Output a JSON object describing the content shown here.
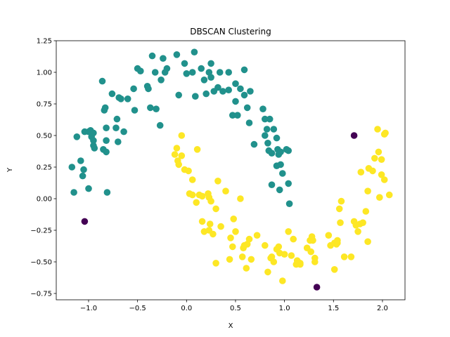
{
  "chart_data": {
    "type": "scatter",
    "title": "DBSCAN Clustering",
    "xlabel": "X",
    "ylabel": "Y",
    "xlim": [
      -1.33,
      2.23
    ],
    "ylim": [
      -0.8,
      1.25
    ],
    "xticks": [
      -1.0,
      -0.5,
      0.0,
      0.5,
      1.0,
      1.5,
      2.0
    ],
    "xtick_labels": [
      "−1.0",
      "−0.5",
      "0.0",
      "0.5",
      "1.0",
      "1.5",
      "2.0"
    ],
    "yticks": [
      -0.75,
      -0.5,
      -0.25,
      0.0,
      0.25,
      0.5,
      0.75,
      1.0,
      1.25
    ],
    "ytick_labels": [
      "−0.75",
      "−0.50",
      "−0.25",
      "0.00",
      "0.25",
      "0.50",
      "0.75",
      "1.00",
      "1.25"
    ],
    "grid": false,
    "series": [
      {
        "color": "#21918c",
        "points": [
          [
            -1.17,
            0.25
          ],
          [
            -1.15,
            0.05
          ],
          [
            -1.12,
            0.49
          ],
          [
            -1.08,
            0.3
          ],
          [
            -1.06,
            0.18
          ],
          [
            -1.05,
            0.23
          ],
          [
            -1.04,
            0.53
          ],
          [
            -1.0,
            0.08
          ],
          [
            -1.0,
            0.53
          ],
          [
            -0.98,
            0.54
          ],
          [
            -0.97,
            0.49
          ],
          [
            -0.95,
            0.42
          ],
          [
            -0.95,
            0.52
          ],
          [
            -0.95,
            0.46
          ],
          [
            -0.94,
            0.4
          ],
          [
            -0.86,
            0.93
          ],
          [
            -0.85,
            0.39
          ],
          [
            -0.84,
            0.7
          ],
          [
            -0.83,
            0.72
          ],
          [
            -0.82,
            0.37
          ],
          [
            -0.82,
            0.56
          ],
          [
            -0.82,
            0.46
          ],
          [
            -0.81,
            0.05
          ],
          [
            -0.76,
            0.83
          ],
          [
            -0.72,
            0.56
          ],
          [
            -0.71,
            0.63
          ],
          [
            -0.7,
            0.45
          ],
          [
            -0.69,
            0.8
          ],
          [
            -0.67,
            0.79
          ],
          [
            -0.64,
            0.53
          ],
          [
            -0.6,
            0.79
          ],
          [
            -0.54,
            0.87
          ],
          [
            -0.53,
            0.7
          ],
          [
            -0.5,
            1.03
          ],
          [
            -0.47,
            1.01
          ],
          [
            -0.4,
            0.89
          ],
          [
            -0.39,
            0.87
          ],
          [
            -0.37,
            0.72
          ],
          [
            -0.35,
            1.13
          ],
          [
            -0.32,
            1.0
          ],
          [
            -0.31,
            0.71
          ],
          [
            -0.27,
            0.58
          ],
          [
            -0.26,
            0.94
          ],
          [
            -0.24,
            1.11
          ],
          [
            -0.22,
            1.0
          ],
          [
            -0.2,
            1.03
          ],
          [
            -0.1,
            1.14
          ],
          [
            -0.08,
            0.82
          ],
          [
            -0.02,
            1.07
          ],
          [
            0.0,
            0.99
          ],
          [
            0.06,
            1.0
          ],
          [
            0.08,
            1.16
          ],
          [
            0.09,
            0.81
          ],
          [
            0.15,
            1.03
          ],
          [
            0.18,
            0.94
          ],
          [
            0.2,
            0.83
          ],
          [
            0.23,
            1.0
          ],
          [
            0.25,
            1.07
          ],
          [
            0.25,
            0.96
          ],
          [
            0.28,
            0.85
          ],
          [
            0.32,
            0.88
          ],
          [
            0.34,
            1.0
          ],
          [
            0.37,
            0.85
          ],
          [
            0.43,
            1.0
          ],
          [
            0.43,
            0.86
          ],
          [
            0.47,
            0.66
          ],
          [
            0.5,
            0.91
          ],
          [
            0.5,
            0.77
          ],
          [
            0.52,
            0.66
          ],
          [
            0.55,
            0.87
          ],
          [
            0.59,
            1.02
          ],
          [
            0.59,
            0.82
          ],
          [
            0.62,
            0.72
          ],
          [
            0.64,
            0.6
          ],
          [
            0.65,
            0.85
          ],
          [
            0.69,
            0.43
          ],
          [
            0.78,
            0.71
          ],
          [
            0.8,
            0.5
          ],
          [
            0.8,
            0.63
          ],
          [
            0.82,
            0.55
          ],
          [
            0.83,
            0.44
          ],
          [
            0.84,
            0.38
          ],
          [
            0.85,
            0.63
          ],
          [
            0.87,
            0.36
          ],
          [
            0.87,
            0.11
          ],
          [
            0.89,
            0.55
          ],
          [
            0.92,
            0.48
          ],
          [
            0.92,
            0.26
          ],
          [
            0.93,
            0.39
          ],
          [
            0.94,
            0.35
          ],
          [
            0.95,
            0.07
          ],
          [
            0.96,
            0.37
          ],
          [
            0.96,
            0.27
          ],
          [
            0.98,
            0.2
          ],
          [
            1.02,
            0.39
          ],
          [
            1.04,
            0.38
          ],
          [
            1.04,
            0.12
          ],
          [
            1.05,
            -0.04
          ]
        ]
      },
      {
        "color": "#fde725",
        "points": [
          [
            -0.12,
            0.35
          ],
          [
            -0.1,
            0.4
          ],
          [
            -0.09,
            0.3
          ],
          [
            -0.08,
            0.27
          ],
          [
            -0.05,
            0.5
          ],
          [
            -0.05,
            0.34
          ],
          [
            -0.02,
            0.23
          ],
          [
            0.02,
            0.22
          ],
          [
            0.03,
            0.04
          ],
          [
            0.06,
            0.15
          ],
          [
            0.06,
            0.03
          ],
          [
            0.1,
            -0.03
          ],
          [
            0.11,
            0.39
          ],
          [
            0.13,
            0.03
          ],
          [
            0.16,
            0.02
          ],
          [
            0.16,
            -0.18
          ],
          [
            0.18,
            -0.26
          ],
          [
            0.22,
            0.04
          ],
          [
            0.23,
            0.01
          ],
          [
            0.23,
            -0.25
          ],
          [
            0.24,
            -0.2
          ],
          [
            0.25,
            -0.02
          ],
          [
            0.27,
            -0.28
          ],
          [
            0.3,
            -0.08
          ],
          [
            0.3,
            -0.51
          ],
          [
            0.32,
            0.14
          ],
          [
            0.35,
            -0.22
          ],
          [
            0.4,
            0.06
          ],
          [
            0.44,
            -0.48
          ],
          [
            0.45,
            -0.31
          ],
          [
            0.47,
            -0.38
          ],
          [
            0.48,
            -0.16
          ],
          [
            0.5,
            -0.26
          ],
          [
            0.55,
            0.0
          ],
          [
            0.57,
            -0.46
          ],
          [
            0.58,
            -0.39
          ],
          [
            0.59,
            -0.37
          ],
          [
            0.61,
            -0.55
          ],
          [
            0.62,
            -0.36
          ],
          [
            0.64,
            -0.32
          ],
          [
            0.66,
            -0.48
          ],
          [
            0.72,
            -0.29
          ],
          [
            0.8,
            -0.37
          ],
          [
            0.83,
            -0.58
          ],
          [
            0.86,
            -0.47
          ],
          [
            0.87,
            -0.46
          ],
          [
            0.89,
            -0.5
          ],
          [
            0.92,
            -0.4
          ],
          [
            0.94,
            -0.38
          ],
          [
            0.95,
            -0.43
          ],
          [
            0.98,
            -0.65
          ],
          [
            1.0,
            -0.44
          ],
          [
            1.04,
            -0.26
          ],
          [
            1.07,
            -0.45
          ],
          [
            1.09,
            -0.32
          ],
          [
            1.12,
            -0.52
          ],
          [
            1.13,
            -0.49
          ],
          [
            1.16,
            -0.51
          ],
          [
            1.16,
            -0.52
          ],
          [
            1.23,
            -0.39
          ],
          [
            1.26,
            -0.33
          ],
          [
            1.27,
            -0.42
          ],
          [
            1.28,
            -0.3
          ],
          [
            1.29,
            -0.33
          ],
          [
            1.31,
            -0.47
          ],
          [
            1.31,
            -0.5
          ],
          [
            1.45,
            -0.29
          ],
          [
            1.47,
            -0.37
          ],
          [
            1.51,
            -0.35
          ],
          [
            1.51,
            -0.56
          ],
          [
            1.53,
            -0.36
          ],
          [
            1.54,
            -0.35
          ],
          [
            1.54,
            -0.33
          ],
          [
            1.56,
            -0.08
          ],
          [
            1.57,
            -0.19
          ],
          [
            1.58,
            -0.02
          ],
          [
            1.61,
            -0.46
          ],
          [
            1.68,
            -0.46
          ],
          [
            1.71,
            -0.18
          ],
          [
            1.73,
            -0.21
          ],
          [
            1.75,
            -0.26
          ],
          [
            1.77,
            -0.2
          ],
          [
            1.78,
            0.21
          ],
          [
            1.8,
            -0.19
          ],
          [
            1.83,
            -0.1
          ],
          [
            1.85,
            0.06
          ],
          [
            1.85,
            -0.34
          ],
          [
            1.86,
            0.24
          ],
          [
            1.9,
            0.22
          ],
          [
            1.92,
            0.32
          ],
          [
            1.95,
            0.55
          ],
          [
            1.96,
            0.37
          ],
          [
            1.97,
            0.01
          ],
          [
            1.99,
            0.31
          ],
          [
            1.99,
            0.19
          ],
          [
            2.02,
            0.51
          ],
          [
            2.02,
            0.15
          ],
          [
            2.03,
            0.52
          ],
          [
            2.07,
            0.03
          ]
        ]
      },
      {
        "color": "#440154",
        "points": [
          [
            -1.04,
            -0.18
          ],
          [
            1.71,
            0.5
          ],
          [
            1.33,
            -0.7
          ]
        ]
      }
    ]
  }
}
